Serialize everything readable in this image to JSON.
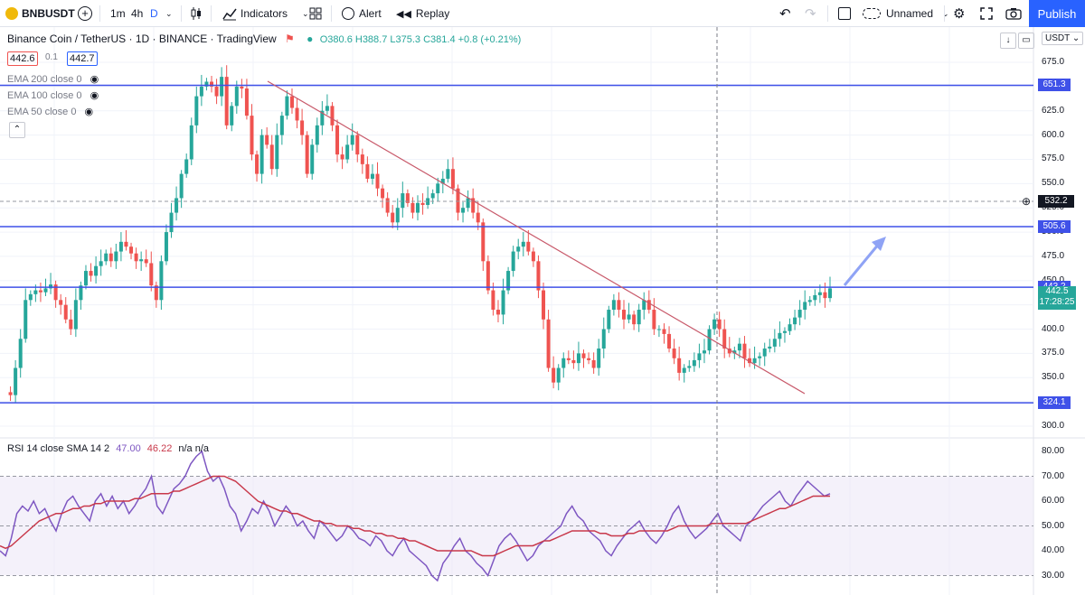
{
  "toolbar": {
    "symbol": "BNBUSDT",
    "intervals": [
      "1m",
      "4h",
      "D"
    ],
    "indicators_label": "Indicators",
    "alert_label": "Alert",
    "replay_label": "Replay",
    "layout_name": "Unnamed",
    "publish_label": "Publish"
  },
  "legend": {
    "title": "Binance Coin / TetherUS · 1D · BINANCE · TradingView",
    "ohlc": "O380.6 H388.7 L375.3 C381.4 +0.8 (+0.21%)",
    "bid": "442.6",
    "spread": "0.1",
    "ask": "442.7",
    "ema200": "EMA 200 close 0",
    "ema100": "EMA 100 close 0",
    "ema50": "EMA 50 close 0"
  },
  "price_axis": {
    "currency": "USDT",
    "ticks": [
      675,
      650,
      625,
      600,
      575,
      550,
      525,
      500,
      475,
      450,
      425,
      400,
      375,
      350,
      325,
      300
    ],
    "hlines": [
      {
        "value": "651.3",
        "color": "#3f51e8"
      },
      {
        "value": "505.6",
        "color": "#3f51e8"
      },
      {
        "value": "443.2",
        "color": "#3f51e8"
      },
      {
        "value": "324.1",
        "color": "#3f51e8"
      }
    ],
    "crosshair_price": "532.2",
    "last_price": "442.5",
    "countdown": "17:28:25"
  },
  "rsi": {
    "legend": "RSI 14 close SMA 14 2",
    "value": "47.00",
    "sma": "46.22",
    "extra": "n/a n/a",
    "ticks": [
      "80.00",
      "70.00",
      "60.00",
      "50.00",
      "40.00",
      "30.00"
    ]
  },
  "chart_data": {
    "type": "candlestick",
    "ylim": [
      290,
      690
    ],
    "candle_closes": [
      335,
      332,
      360,
      390,
      430,
      436,
      440,
      438,
      442,
      446,
      430,
      425,
      410,
      400,
      430,
      445,
      460,
      455,
      465,
      470,
      478,
      470,
      480,
      490,
      485,
      478,
      470,
      472,
      468,
      445,
      430,
      470,
      500,
      520,
      535,
      560,
      575,
      610,
      640,
      650,
      655,
      650,
      640,
      660,
      610,
      630,
      650,
      648,
      620,
      580,
      560,
      600,
      590,
      565,
      600,
      620,
      640,
      628,
      615,
      600,
      560,
      590,
      610,
      625,
      630,
      610,
      580,
      575,
      590,
      600,
      580,
      570,
      555,
      560,
      545,
      535,
      520,
      510,
      525,
      540,
      530,
      520,
      530,
      528,
      535,
      540,
      550,
      555,
      565,
      545,
      520,
      525,
      535,
      520,
      510,
      470,
      440,
      420,
      415,
      440,
      460,
      480,
      485,
      490,
      480,
      470,
      440,
      410,
      360,
      345,
      360,
      370,
      368,
      365,
      375,
      370,
      368,
      360,
      380,
      400,
      420,
      430,
      420,
      410,
      415,
      405,
      420,
      430,
      420,
      400,
      400,
      395,
      380,
      370,
      355,
      360,
      362,
      368,
      375,
      378,
      400,
      410,
      400,
      380,
      375,
      378,
      385,
      370,
      365,
      370,
      372,
      380,
      382,
      390,
      396,
      398,
      405,
      412,
      420,
      428,
      430,
      435,
      438,
      432,
      442
    ]
  },
  "rsi_data": {
    "ylim": [
      25,
      85
    ],
    "rsi": [
      40,
      38,
      45,
      55,
      58,
      56,
      60,
      55,
      57,
      52,
      48,
      55,
      60,
      62,
      58,
      55,
      52,
      60,
      63,
      58,
      62,
      57,
      60,
      55,
      58,
      62,
      65,
      70,
      58,
      55,
      60,
      65,
      67,
      70,
      75,
      78,
      80,
      72,
      68,
      70,
      65,
      58,
      55,
      48,
      52,
      57,
      55,
      60,
      56,
      50,
      54,
      58,
      55,
      50,
      52,
      48,
      45,
      52,
      50,
      47,
      44,
      46,
      50,
      48,
      45,
      44,
      42,
      46,
      44,
      40,
      38,
      42,
      45,
      40,
      38,
      36,
      34,
      30,
      28,
      35,
      38,
      42,
      45,
      40,
      38,
      35,
      33,
      30,
      36,
      42,
      45,
      47,
      44,
      40,
      36,
      38,
      42,
      44,
      46,
      48,
      50,
      55,
      58,
      54,
      52,
      48,
      46,
      44,
      40,
      38,
      42,
      45,
      48,
      50,
      52,
      48,
      45,
      43,
      46,
      50,
      55,
      58,
      52,
      48,
      45,
      47,
      49,
      52,
      55,
      50,
      48,
      46,
      44,
      50,
      52,
      55,
      58,
      60,
      62,
      64,
      60,
      58,
      62,
      65,
      68,
      66,
      64,
      62,
      63
    ],
    "sma": [
      42,
      41,
      42,
      44,
      46,
      48,
      50,
      52,
      53,
      54,
      55,
      55,
      56,
      57,
      57,
      58,
      58,
      59,
      59,
      60,
      60,
      60,
      60,
      60,
      61,
      61,
      62,
      63,
      63,
      63,
      63,
      64,
      64,
      65,
      66,
      67,
      68,
      69,
      70,
      70,
      70,
      69,
      68,
      66,
      64,
      62,
      60,
      59,
      58,
      57,
      56,
      56,
      55,
      55,
      54,
      53,
      52,
      52,
      51,
      51,
      50,
      50,
      50,
      49,
      49,
      48,
      48,
      47,
      47,
      46,
      46,
      45,
      45,
      44,
      44,
      43,
      42,
      41,
      40,
      40,
      40,
      40,
      40,
      40,
      40,
      39,
      38,
      38,
      38,
      39,
      40,
      41,
      42,
      42,
      42,
      42,
      43,
      44,
      44,
      45,
      46,
      47,
      48,
      48,
      48,
      48,
      48,
      47,
      47,
      46,
      46,
      46,
      47,
      47,
      48,
      48,
      48,
      48,
      48,
      48,
      49,
      50,
      50,
      50,
      50,
      50,
      50,
      51,
      51,
      51,
      51,
      51,
      51,
      51,
      52,
      53,
      54,
      55,
      56,
      57,
      57,
      58,
      59,
      60,
      61,
      62,
      62,
      62,
      62
    ]
  }
}
